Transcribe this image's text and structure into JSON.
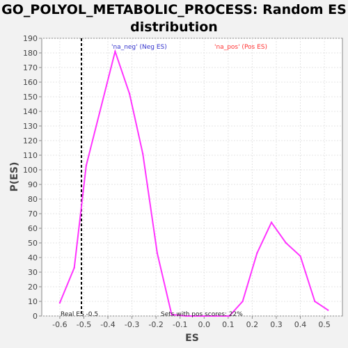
{
  "chart_data": {
    "type": "line",
    "title_line1": "GO_POLYOL_METABOLIC_PROCESS: Random ES",
    "title_line2": "distribution",
    "xlabel": "ES",
    "ylabel": "P(ES)",
    "xlim": [
      -0.675,
      0.575
    ],
    "ylim": [
      0,
      190
    ],
    "x_ticks": [
      -0.6,
      -0.5,
      -0.4,
      -0.3,
      -0.2,
      -0.1,
      0.0,
      0.1,
      0.2,
      0.3,
      0.4,
      0.5
    ],
    "x_tick_labels": [
      "-0.6",
      "-0.5",
      "-0.4",
      "-0.3",
      "-0.2",
      "-0.1",
      "0.0",
      "0.1",
      "0.2",
      "0.3",
      "0.4",
      "0.5"
    ],
    "y_ticks": [
      0,
      10,
      20,
      30,
      40,
      50,
      60,
      70,
      80,
      90,
      100,
      110,
      120,
      130,
      140,
      150,
      160,
      170,
      180,
      190
    ],
    "grid": true,
    "series": [
      {
        "color": "#ff33ff",
        "x": [
          -0.6,
          -0.54,
          -0.49,
          -0.37,
          -0.31,
          -0.255,
          -0.195,
          -0.135,
          -0.075,
          -0.015,
          0.045,
          0.105,
          0.16,
          0.22,
          0.28,
          0.34,
          0.4,
          0.46,
          0.515
        ],
        "y": [
          9,
          33,
          103,
          181,
          152,
          111,
          43,
          1,
          0,
          0,
          0,
          0,
          10,
          43,
          64,
          50,
          41,
          10,
          4
        ]
      }
    ],
    "real_es": -0.51,
    "annotations": {
      "neg_label": "'na_neg' (Neg ES)",
      "pos_label": "'na_pos' (Pos ES)",
      "real_es": "Real ES -0.5",
      "pos_scores": "Sets with pos scores: 22%"
    },
    "colors": {
      "line": "#ff33ff",
      "neg": "#3333cc",
      "pos": "#ff3333",
      "marker": "#000000"
    }
  }
}
